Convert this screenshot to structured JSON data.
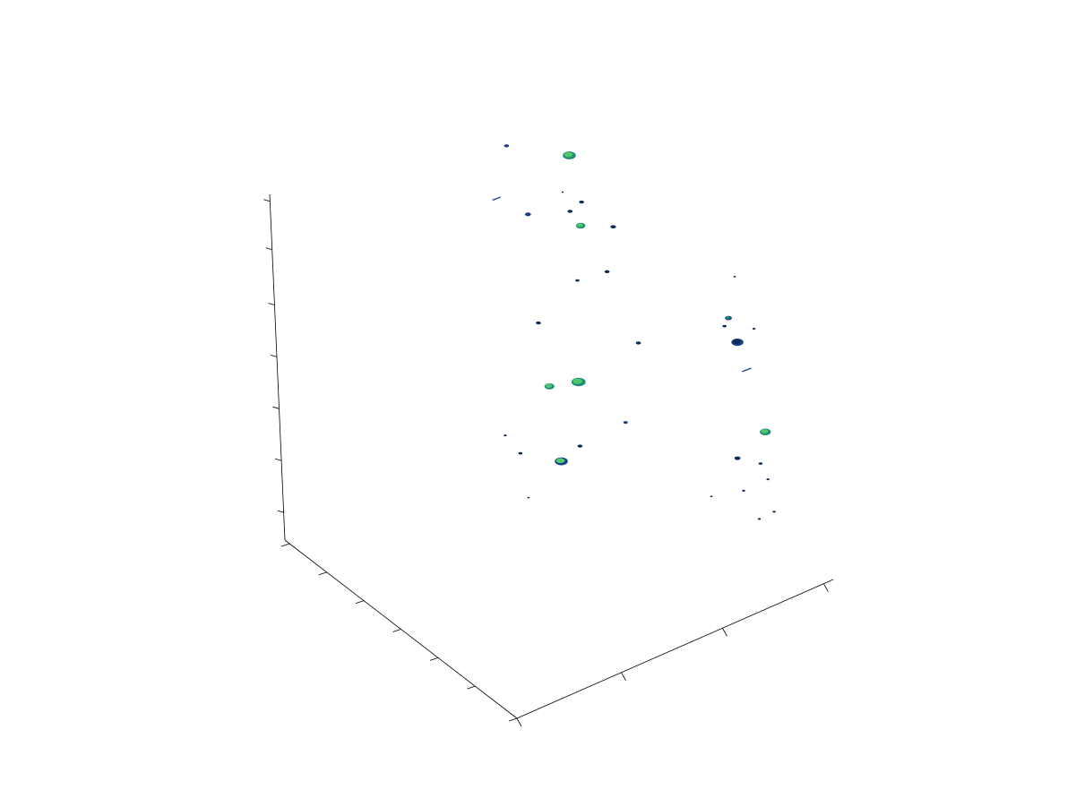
{
  "chart_data": {
    "type": "scatter",
    "projection": "3d-isosurface",
    "title": "",
    "xlabel": "",
    "ylabel": "",
    "zlabel": "",
    "grid": false,
    "legend": "none",
    "axis_tick_counts": {
      "x": 6,
      "y": 3,
      "z": 7
    },
    "colors": {
      "axis": "#000000",
      "blob_light": "#4cc76a",
      "blob_mid": "#1f8a78",
      "blob_dark": "#1b3f86",
      "blob_edge": "#0d2a55"
    },
    "blobs": [
      {
        "x": 0.63,
        "y": 0.84,
        "z": 0.97,
        "size": 1.0,
        "tone": "mid"
      },
      {
        "x": 0.74,
        "y": 0.72,
        "z": 0.96,
        "size": 2.6,
        "tone": "light"
      },
      {
        "x": 0.55,
        "y": 0.78,
        "z": 0.88,
        "size": 1.4,
        "tone": "line"
      },
      {
        "x": 0.59,
        "y": 0.7,
        "z": 0.86,
        "size": 1.2,
        "tone": "mid"
      },
      {
        "x": 0.73,
        "y": 0.66,
        "z": 0.86,
        "size": 1.0,
        "tone": "dark"
      },
      {
        "x": 0.71,
        "y": 0.64,
        "z": 0.81,
        "size": 1.9,
        "tone": "light"
      },
      {
        "x": 0.7,
        "y": 0.67,
        "z": 0.84,
        "size": 1.0,
        "tone": "dark"
      },
      {
        "x": 0.63,
        "y": 0.55,
        "z": 0.73,
        "size": 0.8,
        "tone": "dark"
      },
      {
        "x": 0.79,
        "y": 0.61,
        "z": 0.79,
        "size": 1.1,
        "tone": "dark"
      },
      {
        "x": 0.51,
        "y": 0.56,
        "z": 0.65,
        "size": 1.0,
        "tone": "dark"
      },
      {
        "x": 0.73,
        "y": 0.56,
        "z": 0.71,
        "size": 1.0,
        "tone": "dark"
      },
      {
        "x": 0.35,
        "y": 0.5,
        "z": 0.42,
        "size": 0.6,
        "tone": "dark"
      },
      {
        "x": 0.36,
        "y": 0.45,
        "z": 0.39,
        "size": 0.8,
        "tone": "dark"
      },
      {
        "x": 0.33,
        "y": 0.38,
        "z": 0.31,
        "size": 0.5,
        "tone": "dark"
      },
      {
        "x": 0.48,
        "y": 0.48,
        "z": 0.52,
        "size": 2.0,
        "tone": "light"
      },
      {
        "x": 0.55,
        "y": 0.45,
        "z": 0.52,
        "size": 2.8,
        "tone": "light"
      },
      {
        "x": 0.43,
        "y": 0.37,
        "z": 0.38,
        "size": 2.6,
        "tone": "mixed"
      },
      {
        "x": 0.49,
        "y": 0.37,
        "z": 0.4,
        "size": 1.0,
        "tone": "dark"
      },
      {
        "x": 0.92,
        "y": 0.32,
        "z": 0.6,
        "size": 0.8,
        "tone": "dark"
      },
      {
        "x": 0.94,
        "y": 0.33,
        "z": 0.61,
        "size": 1.4,
        "tone": "mid"
      },
      {
        "x": 0.93,
        "y": 0.28,
        "z": 0.57,
        "size": 2.4,
        "tone": "darkest"
      },
      {
        "x": 0.92,
        "y": 0.23,
        "z": 0.52,
        "size": 1.6,
        "tone": "line"
      },
      {
        "x": 0.99,
        "y": 0.29,
        "z": 0.58,
        "size": 0.6,
        "tone": "dark"
      },
      {
        "x": 1.0,
        "y": 0.38,
        "z": 0.68,
        "size": 0.5,
        "tone": "dark"
      },
      {
        "x": 0.72,
        "y": 0.42,
        "z": 0.58,
        "size": 1.0,
        "tone": "dark"
      },
      {
        "x": 0.6,
        "y": 0.32,
        "z": 0.45,
        "size": 0.9,
        "tone": "mid"
      },
      {
        "x": 0.9,
        "y": 0.13,
        "z": 0.4,
        "size": 2.2,
        "tone": "light"
      },
      {
        "x": 0.81,
        "y": 0.13,
        "z": 0.36,
        "size": 1.2,
        "tone": "dark"
      },
      {
        "x": 0.86,
        "y": 0.1,
        "z": 0.34,
        "size": 0.8,
        "tone": "dark"
      },
      {
        "x": 0.79,
        "y": 0.08,
        "z": 0.3,
        "size": 0.6,
        "tone": "dark"
      },
      {
        "x": 0.86,
        "y": 0.07,
        "z": 0.31,
        "size": 0.6,
        "tone": "dark"
      },
      {
        "x": 0.71,
        "y": 0.11,
        "z": 0.3,
        "size": 0.5,
        "tone": "dark"
      },
      {
        "x": 0.8,
        "y": 0.03,
        "z": 0.24,
        "size": 0.6,
        "tone": "dark"
      },
      {
        "x": 0.84,
        "y": 0.02,
        "z": 0.25,
        "size": 0.6,
        "tone": "dark"
      },
      {
        "x": 0.7,
        "y": 0.7,
        "z": 0.88,
        "size": 0.4,
        "tone": "dark"
      }
    ]
  }
}
